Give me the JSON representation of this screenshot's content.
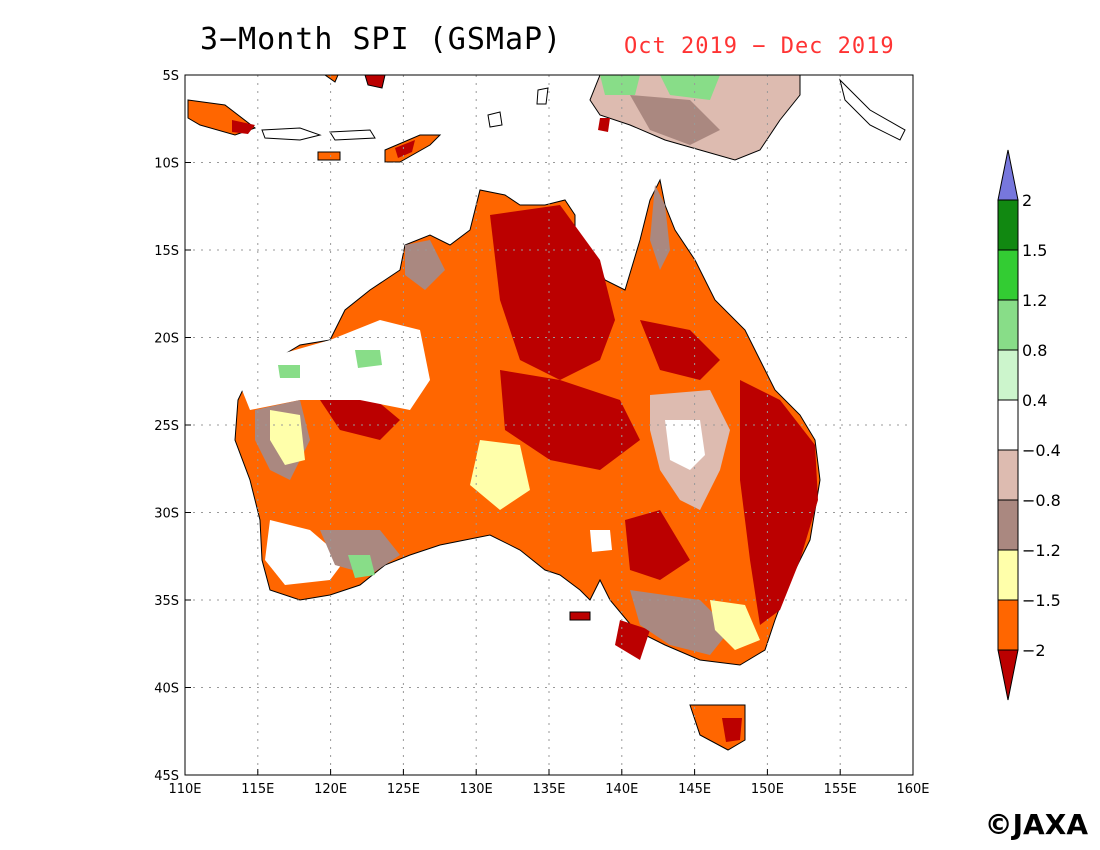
{
  "title": "3−Month SPI (GSMaP)",
  "period": "Oct 2019 − Dec 2019",
  "copyright": "©JAXA",
  "map": {
    "lon_range": [
      110,
      160
    ],
    "lat_range": [
      -45,
      -5
    ],
    "lat_ticks": [
      {
        "value": -5,
        "label": "5S"
      },
      {
        "value": -10,
        "label": "10S"
      },
      {
        "value": -15,
        "label": "15S"
      },
      {
        "value": -20,
        "label": "20S"
      },
      {
        "value": -25,
        "label": "25S"
      },
      {
        "value": -30,
        "label": "30S"
      },
      {
        "value": -35,
        "label": "35S"
      },
      {
        "value": -40,
        "label": "40S"
      },
      {
        "value": -45,
        "label": "45S"
      }
    ],
    "lon_ticks": [
      {
        "value": 110,
        "label": "110E"
      },
      {
        "value": 115,
        "label": "115E"
      },
      {
        "value": 120,
        "label": "120E"
      },
      {
        "value": 125,
        "label": "125E"
      },
      {
        "value": 130,
        "label": "130E"
      },
      {
        "value": 135,
        "label": "135E"
      },
      {
        "value": 140,
        "label": "140E"
      },
      {
        "value": 145,
        "label": "145E"
      },
      {
        "value": 150,
        "label": "150E"
      },
      {
        "value": 155,
        "label": "155E"
      },
      {
        "value": 160,
        "label": "160E"
      }
    ],
    "grid": true
  },
  "colorbar": {
    "bins": [
      {
        "color": "#7777dd"
      },
      {
        "color": "#118811"
      },
      {
        "color": "#33cc33"
      },
      {
        "color": "#88dd88"
      },
      {
        "color": "#ccf5cc"
      },
      {
        "color": "#ffffff"
      },
      {
        "color": "#ddbbb0"
      },
      {
        "color": "#aa8880"
      },
      {
        "color": "#ffffaa"
      },
      {
        "color": "#ff6600"
      },
      {
        "color": "#bb0000"
      }
    ],
    "labels": [
      "2",
      "1.5",
      "1.2",
      "0.8",
      "0.4",
      "−0.4",
      "−0.8",
      "−1.2",
      "−1.5",
      "−2"
    ]
  }
}
